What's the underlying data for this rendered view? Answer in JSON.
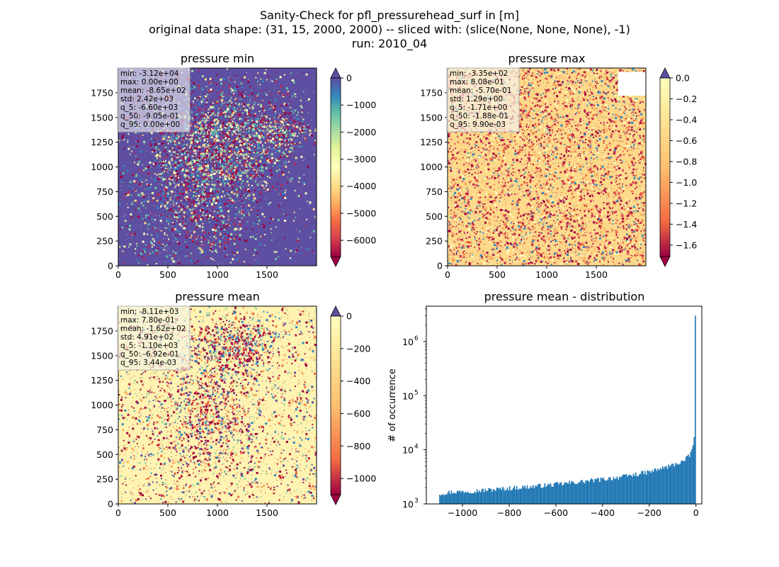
{
  "figure": {
    "title_lines": [
      "Sanity-Check for pfl_pressurehead_surf in [m]",
      "original data shape: (31, 15, 2000, 2000) -- sliced with: (slice(None, None, None), -1)",
      "run: 2010_04"
    ]
  },
  "chart_data": [
    {
      "type": "heatmap",
      "title": "pressure min",
      "xticks": [
        0,
        500,
        1000,
        1500
      ],
      "yticks": [
        0,
        250,
        500,
        750,
        1000,
        1250,
        1500,
        1750
      ],
      "xlim": [
        0,
        2000
      ],
      "ylim": [
        0,
        2000
      ],
      "colormap": "Spectral",
      "colorbar": {
        "ticks": [
          "0",
          "−1000",
          "−2000",
          "−3000",
          "−4000",
          "−5000",
          "−6000"
        ],
        "range": [
          -6600,
          0
        ]
      },
      "stats": [
        "min: -3.12e+04",
        "max: 0.00e+00",
        "mean: -8.65e+02",
        "std: 2.42e+03",
        "q_5: -6.60e+03",
        "q_50: -9.05e-01",
        "q_95: 0.00e+00"
      ]
    },
    {
      "type": "heatmap",
      "title": "pressure max",
      "xticks": [
        0,
        500,
        1000,
        1500
      ],
      "yticks": [
        0,
        250,
        500,
        750,
        1000,
        1250,
        1500,
        1750
      ],
      "xlim": [
        0,
        2000
      ],
      "ylim": [
        0,
        2000
      ],
      "colormap": "Spectral",
      "colorbar": {
        "ticks": [
          "0.0",
          "−0.2",
          "−0.4",
          "−0.6",
          "−0.8",
          "−1.0",
          "−1.2",
          "−1.4",
          "−1.6"
        ],
        "range": [
          -1.71,
          0
        ]
      },
      "stats": [
        "min: -3.35e+02",
        "max: 8.08e-01",
        "mean: -5.70e-01",
        "std: 1.29e+00",
        "q_5: -1.71e+00",
        "q_50: -1.88e-01",
        "q_95: 9.90e-03"
      ]
    },
    {
      "type": "heatmap",
      "title": "pressure mean",
      "xticks": [
        0,
        500,
        1000,
        1500
      ],
      "yticks": [
        0,
        250,
        500,
        750,
        1000,
        1250,
        1500,
        1750
      ],
      "xlim": [
        0,
        2000
      ],
      "ylim": [
        0,
        2000
      ],
      "colormap": "Spectral",
      "colorbar": {
        "ticks": [
          "0",
          "−200",
          "−400",
          "−600",
          "−800",
          "−1000"
        ],
        "range": [
          -1100,
          0
        ]
      },
      "stats": [
        "min: -8.11e+03",
        "max: 7.80e-01",
        "mean: -1.62e+02",
        "std: 4.91e+02",
        "q_5: -1.10e+03",
        "q_50: -6.92e-01",
        "q_95: 3.44e-03"
      ]
    },
    {
      "type": "bar",
      "title": "pressure mean - distribution",
      "ylabel": "# of occurrence",
      "yscale": "log",
      "xlim": [
        -1155,
        25
      ],
      "ylim": [
        1000,
        4500000
      ],
      "xticks": [
        -1000,
        -800,
        -600,
        -400,
        -200,
        0
      ],
      "xtick_labels": [
        "−1000",
        "−800",
        "−600",
        "−400",
        "−200",
        "0"
      ],
      "yticks": [
        1000,
        10000,
        100000,
        1000000
      ],
      "ytick_labels": [
        [
          "10",
          "3"
        ],
        [
          "10",
          "4"
        ],
        [
          "10",
          "5"
        ],
        [
          "10",
          "6"
        ]
      ],
      "bar_color": "#1f77b4",
      "bin_range": [
        -1100,
        0
      ],
      "bin_count": 220,
      "approx_counts": [
        {
          "x": -1100,
          "y": 1550
        },
        {
          "x": -1050,
          "y": 1650
        },
        {
          "x": -1000,
          "y": 1700
        },
        {
          "x": -900,
          "y": 1800
        },
        {
          "x": -800,
          "y": 1950
        },
        {
          "x": -700,
          "y": 2100
        },
        {
          "x": -600,
          "y": 2300
        },
        {
          "x": -500,
          "y": 2550
        },
        {
          "x": -400,
          "y": 2850
        },
        {
          "x": -300,
          "y": 3250
        },
        {
          "x": -200,
          "y": 3900
        },
        {
          "x": -100,
          "y": 5200
        },
        {
          "x": -50,
          "y": 6300
        },
        {
          "x": -25,
          "y": 8000
        },
        {
          "x": -10,
          "y": 13000
        },
        {
          "x": -5,
          "y": 23000
        },
        {
          "x": 0,
          "y": 3000000
        }
      ]
    }
  ]
}
